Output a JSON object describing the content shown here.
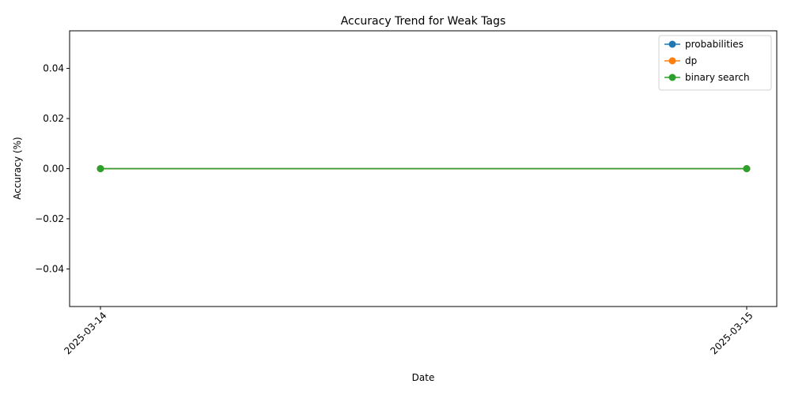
{
  "chart_data": {
    "type": "line",
    "title": "Accuracy Trend for Weak Tags",
    "xlabel": "Date",
    "ylabel": "Accuracy (%)",
    "x": [
      "2025-03-14",
      "2025-03-15"
    ],
    "ylim": [
      -0.055,
      0.055
    ],
    "yticks": [
      "−0.04",
      "−0.02",
      "0.00",
      "0.02",
      "0.04"
    ],
    "grid": false,
    "legend_position": "upper right",
    "series": [
      {
        "name": "probabilities",
        "color": "#1f77b4",
        "values": [
          0,
          0
        ]
      },
      {
        "name": "dp",
        "color": "#ff7f0e",
        "values": [
          0,
          0
        ]
      },
      {
        "name": "binary search",
        "color": "#2ca02c",
        "values": [
          0,
          0
        ]
      }
    ]
  }
}
